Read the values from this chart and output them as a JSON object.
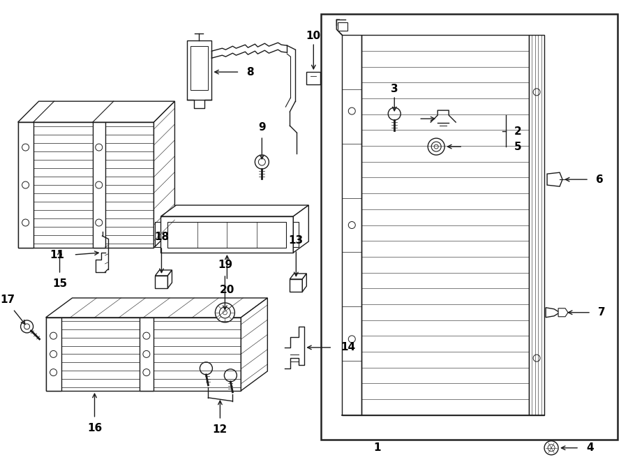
{
  "background_color": "#ffffff",
  "line_color": "#1a1a1a",
  "text_color": "#000000",
  "fig_width": 9.0,
  "fig_height": 6.62,
  "dpi": 100
}
